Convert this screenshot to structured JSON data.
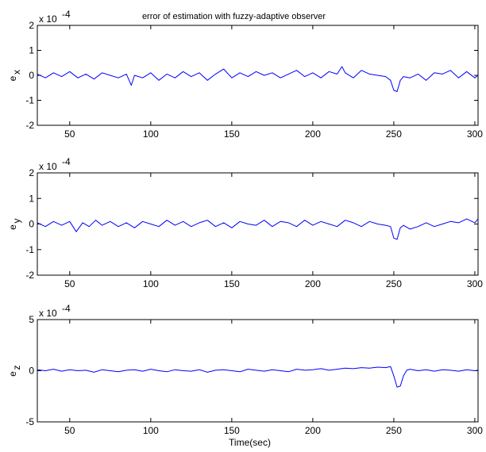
{
  "chart_data": [
    {
      "type": "line",
      "title": "error of estimation with fuzzy-adaptive observer",
      "xlabel": "",
      "ylabel": "e",
      "ylabel_sub": "x",
      "exponent": "x 10",
      "exponent_power": "-4",
      "xlim": [
        30,
        302
      ],
      "ylim": [
        -2,
        2
      ],
      "xticks": [
        50,
        100,
        150,
        200,
        250,
        300
      ],
      "yticks": [
        -2,
        -1,
        0,
        1,
        2
      ],
      "color": "#0000ff",
      "series": [
        {
          "x": [
            30,
            35,
            40,
            45,
            50,
            55,
            60,
            65,
            70,
            75,
            80,
            85,
            88,
            90,
            95,
            100,
            105,
            110,
            115,
            120,
            125,
            130,
            135,
            140,
            145,
            150,
            155,
            160,
            165,
            170,
            175,
            180,
            185,
            190,
            195,
            200,
            205,
            210,
            215,
            218,
            220,
            225,
            230,
            235,
            240,
            245,
            248,
            250,
            252,
            254,
            256,
            260,
            265,
            270,
            275,
            280,
            285,
            290,
            295,
            300,
            302
          ],
          "y": [
            0.05,
            -0.1,
            0.1,
            -0.05,
            0.15,
            -0.1,
            0.05,
            -0.15,
            0.1,
            0.0,
            -0.1,
            0.05,
            -0.4,
            0.0,
            -0.1,
            0.1,
            -0.2,
            0.05,
            -0.1,
            0.15,
            -0.05,
            0.1,
            -0.2,
            0.05,
            0.25,
            -0.1,
            0.1,
            -0.05,
            0.15,
            0.0,
            0.1,
            -0.1,
            0.05,
            0.2,
            -0.05,
            0.1,
            -0.1,
            0.15,
            0.05,
            0.35,
            0.1,
            -0.1,
            0.2,
            0.05,
            0.0,
            -0.05,
            -0.2,
            -0.6,
            -0.65,
            -0.2,
            -0.05,
            -0.1,
            0.05,
            -0.2,
            0.1,
            0.05,
            0.2,
            -0.1,
            0.15,
            -0.1,
            0.0
          ]
        }
      ]
    },
    {
      "type": "line",
      "title": "",
      "xlabel": "",
      "ylabel": "e",
      "ylabel_sub": "y",
      "exponent": "x 10",
      "exponent_power": "-4",
      "xlim": [
        30,
        302
      ],
      "ylim": [
        -2,
        2
      ],
      "xticks": [
        50,
        100,
        150,
        200,
        250,
        300
      ],
      "yticks": [
        -2,
        -1,
        0,
        1,
        2
      ],
      "color": "#0000ff",
      "series": [
        {
          "x": [
            30,
            35,
            40,
            45,
            50,
            54,
            58,
            62,
            66,
            70,
            75,
            80,
            85,
            90,
            95,
            100,
            105,
            110,
            115,
            120,
            125,
            130,
            135,
            140,
            145,
            150,
            155,
            160,
            165,
            170,
            175,
            180,
            185,
            190,
            195,
            200,
            205,
            210,
            215,
            220,
            225,
            230,
            235,
            240,
            245,
            248,
            250,
            252,
            254,
            256,
            260,
            265,
            270,
            275,
            280,
            285,
            290,
            295,
            300,
            302
          ],
          "y": [
            0.05,
            -0.1,
            0.1,
            -0.05,
            0.1,
            -0.3,
            0.05,
            -0.1,
            0.15,
            -0.05,
            0.1,
            -0.1,
            0.05,
            -0.15,
            0.1,
            0.0,
            -0.1,
            0.15,
            -0.05,
            0.1,
            -0.1,
            0.05,
            0.15,
            -0.1,
            0.05,
            -0.15,
            0.1,
            0.0,
            -0.05,
            0.15,
            -0.1,
            0.1,
            0.05,
            -0.1,
            0.15,
            -0.05,
            0.1,
            0.0,
            -0.1,
            0.15,
            0.05,
            -0.1,
            0.1,
            0.0,
            -0.05,
            -0.1,
            -0.55,
            -0.6,
            -0.15,
            -0.05,
            -0.2,
            -0.1,
            0.05,
            -0.1,
            0.0,
            0.1,
            0.05,
            0.2,
            0.05,
            0.2
          ]
        }
      ]
    },
    {
      "type": "line",
      "title": "",
      "xlabel": "Time(sec)",
      "ylabel": "e",
      "ylabel_sub": "z",
      "exponent": "x 10",
      "exponent_power": "-4",
      "xlim": [
        30,
        302
      ],
      "ylim": [
        -5,
        5
      ],
      "xticks": [
        50,
        100,
        150,
        200,
        250,
        300
      ],
      "yticks": [
        -5,
        0,
        5
      ],
      "color": "#0000ff",
      "series": [
        {
          "x": [
            30,
            35,
            40,
            45,
            50,
            55,
            60,
            65,
            70,
            75,
            80,
            85,
            90,
            95,
            100,
            105,
            110,
            115,
            120,
            125,
            130,
            135,
            140,
            145,
            150,
            155,
            160,
            165,
            170,
            175,
            180,
            185,
            190,
            195,
            200,
            205,
            210,
            215,
            220,
            225,
            230,
            235,
            240,
            245,
            248,
            250,
            252,
            254,
            256,
            258,
            260,
            265,
            270,
            275,
            280,
            285,
            290,
            295,
            300,
            302
          ],
          "y": [
            0.1,
            0.0,
            0.15,
            -0.05,
            0.1,
            0.0,
            0.05,
            -0.15,
            0.1,
            0.0,
            -0.1,
            0.05,
            0.1,
            -0.05,
            0.15,
            0.0,
            -0.1,
            0.1,
            0.0,
            -0.05,
            0.1,
            -0.15,
            0.05,
            0.1,
            0.0,
            -0.1,
            0.15,
            0.05,
            -0.05,
            0.1,
            0.0,
            -0.1,
            0.15,
            0.05,
            0.1,
            0.2,
            0.05,
            0.15,
            0.25,
            0.2,
            0.3,
            0.25,
            0.35,
            0.3,
            0.4,
            -0.5,
            -1.6,
            -1.5,
            -0.5,
            0.05,
            0.15,
            0.0,
            0.1,
            -0.05,
            0.1,
            0.05,
            -0.05,
            0.1,
            0.0,
            0.05
          ]
        }
      ]
    }
  ]
}
